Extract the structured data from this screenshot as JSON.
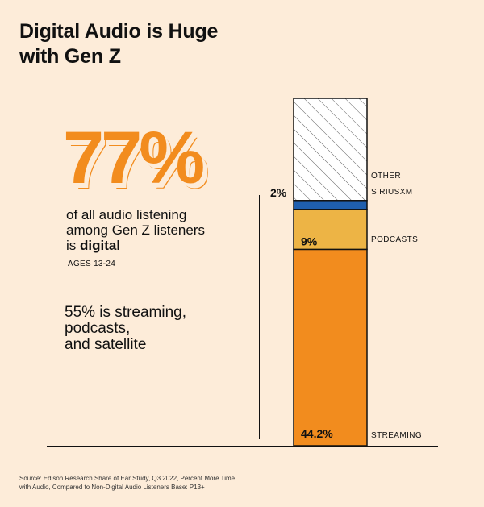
{
  "title_line1": "Digital Audio is Huge",
  "title_line2": "with Gen Z",
  "big_stat": "77%",
  "stat_desc_line1": "of all audio listening",
  "stat_desc_line2": "among Gen Z listeners",
  "stat_desc_line3_prefix": "is ",
  "stat_desc_line3_bold": "digital",
  "ages": "AGES 13-24",
  "streaming_note_line1": "55% is streaming,",
  "streaming_note_line2": "podcasts,",
  "streaming_note_line3": "and satellite",
  "source_line1": "Source: Edison Research Share of Ear Study, Q3 2022, Percent More Time",
  "source_line2": "with Audio, Compared to Non-Digital Audio Listeners Base: P13+",
  "colors": {
    "background": "#fdecd9",
    "streaming": "#f28c1e",
    "podcasts": "#edb445",
    "siriusxm": "#1f5fae",
    "other": "#ffffff"
  },
  "chart_data": {
    "type": "bar",
    "stacked": true,
    "orientation": "vertical",
    "categories": [
      "Gen Z"
    ],
    "series": [
      {
        "name": "STREAMING",
        "values": [
          44.2
        ],
        "label": "44.2%",
        "color": "#f28c1e"
      },
      {
        "name": "PODCASTS",
        "values": [
          9
        ],
        "label": "9%",
        "color": "#edb445"
      },
      {
        "name": "SIRIUSXM",
        "values": [
          2
        ],
        "label": "2%",
        "color": "#1f5fae"
      },
      {
        "name": "OTHER",
        "values": [
          23
        ],
        "label": "",
        "color": "#ffffff",
        "pattern": "hatched"
      }
    ],
    "ylim": [
      0,
      78.2
    ]
  }
}
